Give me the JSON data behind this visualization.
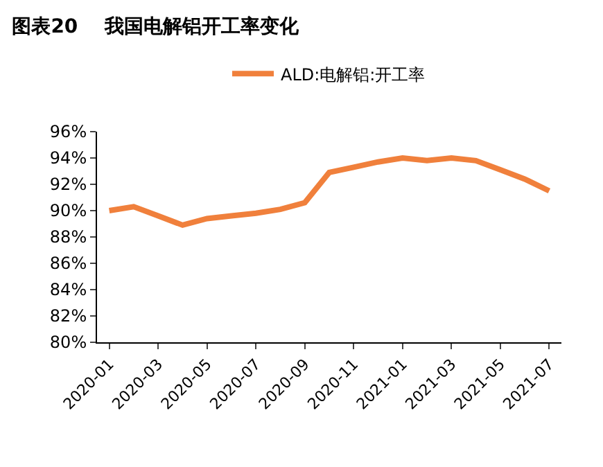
{
  "chart_data": {
    "type": "line",
    "title": "图表20    我国电解铝开工率变化",
    "categories": [
      "2020-01",
      null,
      "2020-03",
      null,
      "2020-05",
      null,
      "2020-07",
      null,
      "2020-09",
      null,
      "2020-11",
      null,
      "2021-01",
      null,
      "2021-03",
      null,
      "2021-05",
      null,
      "2021-07"
    ],
    "series": [
      {
        "name": "ALD:电解铝:开工率",
        "color": "#f0803c",
        "values": [
          90.0,
          90.3,
          89.6,
          88.9,
          89.4,
          89.6,
          89.8,
          90.1,
          90.6,
          92.9,
          93.3,
          93.7,
          94.0,
          93.8,
          94.0,
          93.8,
          93.1,
          92.4,
          91.5
        ]
      }
    ],
    "ylim": [
      80,
      96
    ],
    "yticks": [
      {
        "value": 80,
        "label": "80%"
      },
      {
        "value": 82,
        "label": "82%"
      },
      {
        "value": 84,
        "label": "84%"
      },
      {
        "value": 86,
        "label": "86%"
      },
      {
        "value": 88,
        "label": "88%"
      },
      {
        "value": 90,
        "label": "90%"
      },
      {
        "value": 92,
        "label": "92%"
      },
      {
        "value": 94,
        "label": "94%"
      },
      {
        "value": 96,
        "label": "96%"
      }
    ],
    "legend": "top",
    "marker": "none",
    "line_style": "solid"
  }
}
